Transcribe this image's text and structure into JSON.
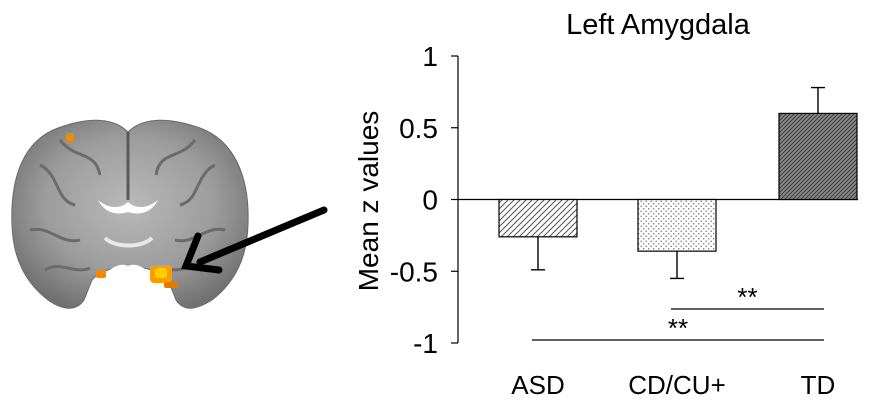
{
  "chart_data": {
    "type": "bar",
    "title": "Left Amygdala",
    "xlabel": "",
    "ylabel": "Mean z values",
    "ylim": [
      -1,
      1
    ],
    "yticks": [
      {
        "value": 1,
        "label": "1"
      },
      {
        "value": 0.5,
        "label": "0.5"
      },
      {
        "value": 0,
        "label": "0"
      },
      {
        "value": -0.5,
        "label": "-0.5"
      },
      {
        "value": -1,
        "label": "-1"
      }
    ],
    "categories": [
      "ASD",
      "CD/CU+",
      "TD"
    ],
    "values": [
      -0.26,
      -0.36,
      0.6
    ],
    "error": [
      0.23,
      0.19,
      0.18
    ],
    "patterns": [
      "diagonal-hatch",
      "dots",
      "dense-diagonal-hatch"
    ],
    "significance": [
      {
        "from": "CD/CU+",
        "to": "TD",
        "label": "**"
      },
      {
        "from": "ASD",
        "to": "TD",
        "label": "**"
      }
    ]
  }
}
